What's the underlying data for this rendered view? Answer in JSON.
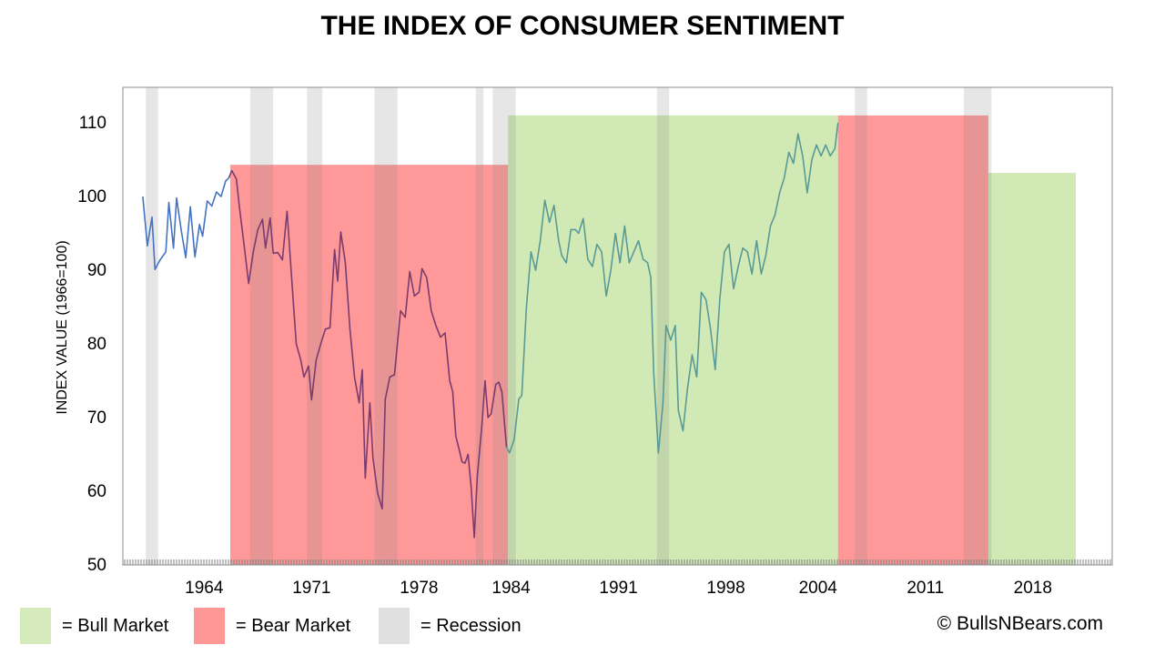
{
  "chart_data": {
    "type": "line",
    "title": "THE INDEX OF CONSUMER SENTIMENT",
    "ylabel": "INDEX VALUE (1966=100)",
    "xlabel": "",
    "ylim": [
      50,
      115
    ],
    "xlim": [
      1959.0,
      2020.8
    ],
    "yticks": [
      50,
      60,
      70,
      80,
      90,
      100,
      110
    ],
    "xtick_labels": [
      "1964",
      "1971",
      "1978",
      "1984",
      "1991",
      "1998",
      "2004",
      "2011",
      "2018"
    ],
    "xtick_positions": [
      1964,
      1971,
      1978,
      1984,
      1991,
      1998,
      2004,
      2011,
      2018
    ],
    "grid": false,
    "legend_placement": "bottom",
    "series": [
      {
        "name": "",
        "color": "#4472c4",
        "points": [
          [
            1960.0,
            100.0
          ],
          [
            1960.3,
            93.3
          ],
          [
            1960.6,
            97.2
          ],
          [
            1960.8,
            90.1
          ],
          [
            1961.1,
            91.3
          ],
          [
            1961.5,
            92.5
          ],
          [
            1961.7,
            99.2
          ],
          [
            1962.0,
            93.0
          ],
          [
            1962.2,
            99.8
          ],
          [
            1962.5,
            95.5
          ],
          [
            1962.8,
            91.7
          ],
          [
            1963.1,
            98.6
          ],
          [
            1963.4,
            91.8
          ],
          [
            1963.7,
            96.2
          ],
          [
            1963.9,
            94.6
          ],
          [
            1964.2,
            99.4
          ],
          [
            1964.5,
            98.7
          ],
          [
            1964.8,
            100.6
          ],
          [
            1965.1,
            100.0
          ],
          [
            1965.4,
            102.1
          ],
          [
            1965.6,
            102.5
          ]
        ]
      },
      {
        "name": "",
        "color": "#7a3c6e",
        "points": [
          [
            1965.6,
            102.5
          ],
          [
            1965.8,
            103.5
          ],
          [
            1966.1,
            102.4
          ],
          [
            1966.3,
            98.5
          ],
          [
            1966.6,
            93.5
          ],
          [
            1966.9,
            88.2
          ],
          [
            1967.2,
            92.5
          ],
          [
            1967.5,
            95.5
          ],
          [
            1967.8,
            96.9
          ],
          [
            1968.0,
            93.0
          ],
          [
            1968.3,
            97.1
          ],
          [
            1968.5,
            92.3
          ],
          [
            1968.8,
            92.4
          ],
          [
            1969.1,
            91.4
          ],
          [
            1969.4,
            98.0
          ],
          [
            1969.7,
            89.0
          ],
          [
            1970.0,
            80.0
          ],
          [
            1970.3,
            77.8
          ],
          [
            1970.5,
            75.5
          ],
          [
            1970.8,
            77.0
          ],
          [
            1971.0,
            72.4
          ],
          [
            1971.3,
            77.8
          ],
          [
            1971.6,
            80.0
          ],
          [
            1971.9,
            82.0
          ],
          [
            1972.2,
            82.2
          ],
          [
            1972.5,
            92.8
          ],
          [
            1972.7,
            88.5
          ],
          [
            1972.9,
            95.2
          ],
          [
            1973.2,
            91.0
          ],
          [
            1973.5,
            82.0
          ],
          [
            1973.8,
            75.5
          ],
          [
            1974.1,
            72.0
          ],
          [
            1974.3,
            76.5
          ],
          [
            1974.5,
            61.8
          ],
          [
            1974.8,
            72.0
          ],
          [
            1975.0,
            64.5
          ],
          [
            1975.3,
            59.8
          ],
          [
            1975.6,
            57.6
          ],
          [
            1975.8,
            72.5
          ],
          [
            1976.1,
            75.5
          ],
          [
            1976.4,
            75.8
          ],
          [
            1976.8,
            84.5
          ],
          [
            1977.1,
            83.6
          ],
          [
            1977.4,
            89.8
          ],
          [
            1977.7,
            86.5
          ],
          [
            1978.0,
            87.0
          ],
          [
            1978.2,
            90.2
          ],
          [
            1978.5,
            89.0
          ],
          [
            1978.8,
            84.5
          ],
          [
            1979.1,
            82.5
          ],
          [
            1979.4,
            80.9
          ],
          [
            1979.7,
            81.5
          ],
          [
            1980.0,
            75.0
          ],
          [
            1980.2,
            73.5
          ],
          [
            1980.4,
            67.5
          ],
          [
            1980.6,
            65.8
          ],
          [
            1980.8,
            64.0
          ],
          [
            1981.0,
            63.8
          ],
          [
            1981.2,
            65.0
          ],
          [
            1981.4,
            60.5
          ],
          [
            1981.6,
            53.7
          ],
          [
            1981.8,
            62.0
          ],
          [
            1982.1,
            69.0
          ],
          [
            1982.3,
            75.0
          ],
          [
            1982.5,
            70.0
          ],
          [
            1982.7,
            70.5
          ],
          [
            1983.0,
            74.5
          ],
          [
            1983.2,
            74.8
          ],
          [
            1983.4,
            73.5
          ],
          [
            1983.7,
            66.0
          ]
        ]
      },
      {
        "name": "",
        "color": "#5a9a96",
        "points": [
          [
            1983.7,
            66.0
          ],
          [
            1983.9,
            65.2
          ],
          [
            1984.2,
            67.0
          ],
          [
            1984.5,
            72.5
          ],
          [
            1984.7,
            73.0
          ],
          [
            1985.0,
            85.0
          ],
          [
            1985.3,
            92.5
          ],
          [
            1985.6,
            90.0
          ],
          [
            1985.9,
            94.0
          ],
          [
            1986.2,
            99.5
          ],
          [
            1986.5,
            96.5
          ],
          [
            1986.8,
            98.8
          ],
          [
            1987.1,
            94.0
          ],
          [
            1987.3,
            92.0
          ],
          [
            1987.6,
            91.0
          ],
          [
            1987.9,
            95.5
          ],
          [
            1988.2,
            95.5
          ],
          [
            1988.4,
            95.0
          ],
          [
            1988.7,
            97.0
          ],
          [
            1989.0,
            91.5
          ],
          [
            1989.3,
            90.5
          ],
          [
            1989.6,
            93.5
          ],
          [
            1989.9,
            92.5
          ],
          [
            1990.2,
            86.5
          ],
          [
            1990.5,
            90.0
          ],
          [
            1990.8,
            95.0
          ],
          [
            1991.1,
            91.0
          ],
          [
            1991.4,
            96.0
          ],
          [
            1991.7,
            91.0
          ],
          [
            1992.0,
            92.5
          ],
          [
            1992.3,
            94.0
          ],
          [
            1992.6,
            91.5
          ],
          [
            1992.9,
            91.0
          ],
          [
            1993.1,
            89.0
          ],
          [
            1993.3,
            76.0
          ],
          [
            1993.6,
            65.2
          ],
          [
            1993.9,
            72.0
          ],
          [
            1994.1,
            82.5
          ],
          [
            1994.4,
            80.5
          ],
          [
            1994.7,
            82.5
          ],
          [
            1994.9,
            71.0
          ],
          [
            1995.2,
            68.2
          ],
          [
            1995.5,
            74.0
          ],
          [
            1995.8,
            78.5
          ],
          [
            1996.1,
            75.5
          ],
          [
            1996.4,
            87.0
          ],
          [
            1996.7,
            86.0
          ],
          [
            1997.0,
            82.0
          ],
          [
            1997.3,
            76.5
          ],
          [
            1997.6,
            86.0
          ],
          [
            1997.9,
            92.5
          ],
          [
            1998.2,
            93.5
          ],
          [
            1998.5,
            87.5
          ],
          [
            1998.8,
            90.5
          ],
          [
            1999.1,
            93.0
          ],
          [
            1999.4,
            92.5
          ],
          [
            1999.7,
            89.5
          ],
          [
            2000.0,
            94.0
          ],
          [
            2000.3,
            89.5
          ],
          [
            2000.6,
            92.0
          ],
          [
            2000.9,
            96.0
          ],
          [
            2001.2,
            97.5
          ],
          [
            2001.5,
            100.5
          ],
          [
            2001.8,
            102.5
          ],
          [
            2002.1,
            106.0
          ],
          [
            2002.4,
            104.5
          ],
          [
            2002.7,
            108.5
          ],
          [
            2003.0,
            105.5
          ],
          [
            2003.3,
            100.5
          ],
          [
            2003.6,
            105.0
          ],
          [
            2003.9,
            107.0
          ],
          [
            2004.2,
            105.5
          ],
          [
            2004.5,
            107.0
          ],
          [
            2004.8,
            105.5
          ],
          [
            2005.1,
            106.5
          ],
          [
            2005.3,
            110.0
          ]
        ]
      }
    ]
  },
  "bands": {
    "bull_market": [
      {
        "x0": 1983.8,
        "x1": 2005.3,
        "top": 111.0
      },
      {
        "x0": 2015.1,
        "x1": 2020.8,
        "top": 103.2
      }
    ],
    "bear_market": [
      {
        "x0": 1965.7,
        "x1": 1983.8,
        "top": 104.3
      },
      {
        "x0": 2005.3,
        "x1": 2015.1,
        "top": 111.0
      }
    ],
    "recession": [
      {
        "x0": 1960.2,
        "x1": 1961.0
      },
      {
        "x0": 1967.0,
        "x1": 1968.5
      },
      {
        "x0": 1970.7,
        "x1": 1971.7
      },
      {
        "x0": 1975.1,
        "x1": 1976.6
      },
      {
        "x0": 1981.7,
        "x1": 1982.2
      },
      {
        "x0": 1982.8,
        "x1": 1984.3
      },
      {
        "x0": 1993.5,
        "x1": 1994.3
      },
      {
        "x0": 2006.4,
        "x1": 2007.2
      },
      {
        "x0": 2013.5,
        "x1": 2015.3
      }
    ]
  },
  "legend": {
    "items": [
      {
        "label": "= Bull Market",
        "color": "#d4eabb"
      },
      {
        "label": "= Bear Market",
        "color": "#ff9797"
      },
      {
        "label": "= Recession",
        "color": "#e0e0e0"
      }
    ]
  },
  "colors": {
    "bull": "#c9e6a8",
    "bear": "#ff8080",
    "recession": "#d9d9d9",
    "axis": "#595959",
    "tick_mark": "#7f7f7f"
  },
  "copyright": "© BullsNBears.com"
}
